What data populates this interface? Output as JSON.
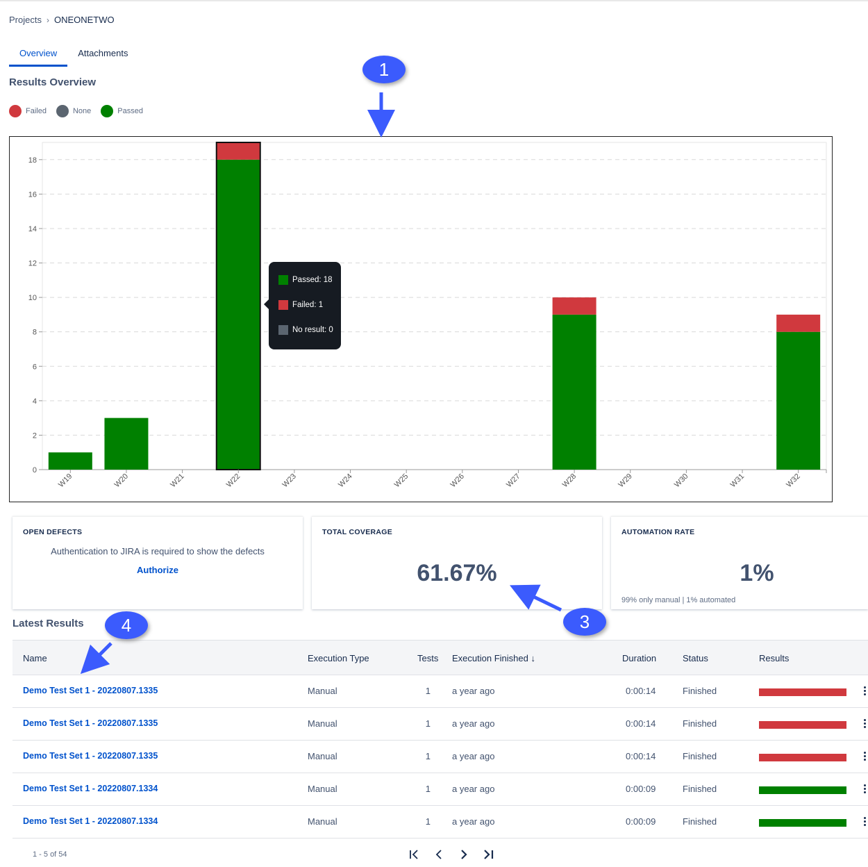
{
  "breadcrumb": {
    "root": "Projects",
    "separator": "›",
    "current": "ONEONETWO"
  },
  "tabs": [
    {
      "label": "Overview",
      "active": true
    },
    {
      "label": "Attachments",
      "active": false
    }
  ],
  "results_overview": {
    "title": "Results Overview",
    "legend": [
      {
        "label": "Failed",
        "color": "#d0393e"
      },
      {
        "label": "None",
        "color": "#5b6570"
      },
      {
        "label": "Passed",
        "color": "#008000"
      }
    ]
  },
  "chart_data": {
    "type": "bar",
    "stacked": true,
    "categories": [
      "W19",
      "W20",
      "W21",
      "W22",
      "W23",
      "W24",
      "W25",
      "W26",
      "W27",
      "W28",
      "W29",
      "W30",
      "W31",
      "W32"
    ],
    "series": [
      {
        "name": "Passed",
        "color": "#008000",
        "values": [
          1,
          3,
          0,
          18,
          0,
          0,
          0,
          0,
          0,
          9,
          0,
          0,
          0,
          8
        ]
      },
      {
        "name": "Failed",
        "color": "#d0393e",
        "values": [
          0,
          0,
          0,
          1,
          0,
          0,
          0,
          0,
          0,
          1,
          0,
          0,
          0,
          1
        ]
      },
      {
        "name": "None",
        "color": "#5b6570",
        "values": [
          0,
          0,
          0,
          0,
          0,
          0,
          0,
          0,
          0,
          0,
          0,
          0,
          0,
          0
        ]
      }
    ],
    "yticks": [
      0,
      2,
      4,
      6,
      8,
      10,
      12,
      14,
      16,
      18
    ],
    "ylim": [
      0,
      19
    ],
    "grid": true,
    "highlighted_category": "W22"
  },
  "tooltip": {
    "rows": [
      {
        "label": "Passed: 18",
        "color": "#008000"
      },
      {
        "label": "Failed: 1",
        "color": "#d0393e"
      },
      {
        "label": "No result: 0",
        "color": "#5b6570"
      }
    ]
  },
  "cards": {
    "open_defects": {
      "title": "OPEN DEFECTS",
      "message": "Authentication to JIRA is required to show the defects",
      "link": "Authorize"
    },
    "total_coverage": {
      "title": "TOTAL COVERAGE",
      "value": "61.67%"
    },
    "automation_rate": {
      "title": "AUTOMATION RATE",
      "value": "1%",
      "note": "99% only manual | 1% automated"
    }
  },
  "latest_results": {
    "title": "Latest Results",
    "columns": [
      "Name",
      "Execution Type",
      "Tests",
      "Execution Finished",
      "Duration",
      "Status",
      "Results"
    ],
    "sort_indicator": "↓",
    "rows": [
      {
        "name": "Demo Test Set 1 - 20220807.1335",
        "type": "Manual",
        "tests": "1",
        "finished": "a year ago",
        "duration": "0:00:14",
        "status": "Finished",
        "result_color": "#d0393e"
      },
      {
        "name": "Demo Test Set 1 - 20220807.1335",
        "type": "Manual",
        "tests": "1",
        "finished": "a year ago",
        "duration": "0:00:14",
        "status": "Finished",
        "result_color": "#d0393e"
      },
      {
        "name": "Demo Test Set 1 - 20220807.1335",
        "type": "Manual",
        "tests": "1",
        "finished": "a year ago",
        "duration": "0:00:14",
        "status": "Finished",
        "result_color": "#d0393e"
      },
      {
        "name": "Demo Test Set 1 - 20220807.1334",
        "type": "Manual",
        "tests": "1",
        "finished": "a year ago",
        "duration": "0:00:09",
        "status": "Finished",
        "result_color": "#008000"
      },
      {
        "name": "Demo Test Set 1 - 20220807.1334",
        "type": "Manual",
        "tests": "1",
        "finished": "a year ago",
        "duration": "0:00:09",
        "status": "Finished",
        "result_color": "#008000"
      }
    ]
  },
  "pagination": {
    "info": "1 - 5 of 54"
  },
  "callouts": [
    "1",
    "3",
    "4"
  ],
  "annotation_color": "#3b5bfd"
}
